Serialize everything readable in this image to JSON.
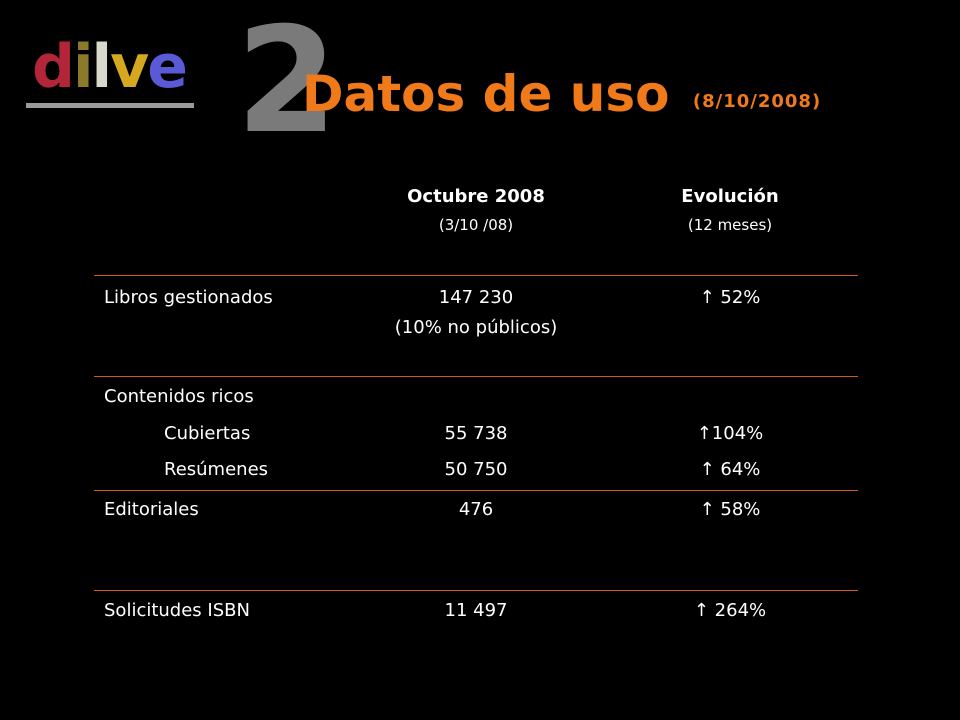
{
  "logo": {
    "letters": [
      "d",
      "i",
      "l",
      "v",
      "e"
    ],
    "colors": [
      "#b3263a",
      "#8a7a2a",
      "#d8d8cc",
      "#d6a820",
      "#5a5ad6"
    ]
  },
  "slide_number": "2",
  "title": "Datos de uso",
  "title_date": "(8/10/2008)",
  "accent_color": "#f07a1a",
  "table": {
    "columns": [
      {
        "main": "Octubre 2008",
        "sub": "(3/10 /08)"
      },
      {
        "main": "Evolución",
        "sub": "(12 meses)"
      }
    ],
    "rows": {
      "libros": {
        "label": "Libros gestionados",
        "value": "147 230",
        "value_sub": "(10% no públicos)",
        "evolution": "↑ 52%"
      },
      "contenidos": {
        "label": "Contenidos ricos"
      },
      "cubiertas": {
        "label": "Cubiertas",
        "value": "55 738",
        "evolution": "↑104%"
      },
      "resumenes": {
        "label": "Resúmenes",
        "value": "50 750",
        "evolution": "↑ 64%"
      },
      "editoriales": {
        "label": "Editoriales",
        "value": "476",
        "evolution": "↑ 58%"
      },
      "isbn": {
        "label": "Solicitudes ISBN",
        "value": "11 497",
        "evolution": "↑ 264%"
      }
    }
  }
}
